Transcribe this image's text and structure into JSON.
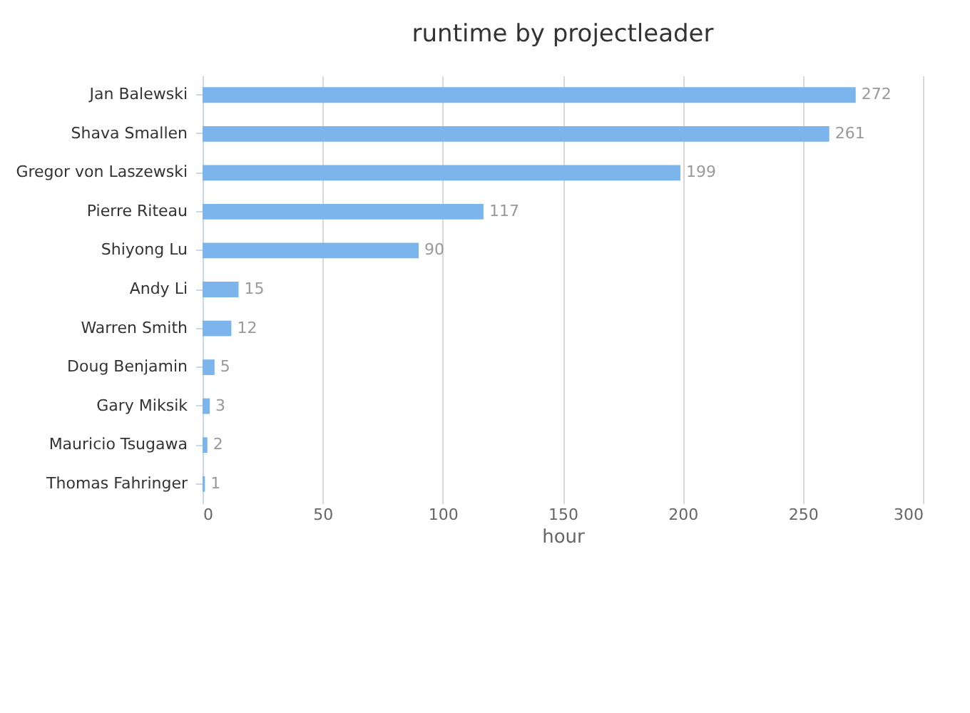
{
  "chart_data": {
    "type": "bar",
    "orientation": "horizontal",
    "title": "runtime by projectleader",
    "xlabel": "hour",
    "categories": [
      "Jan Balewski",
      "Shava Smallen",
      "Gregor von Laszewski",
      "Pierre Riteau",
      "Shiyong Lu",
      "Andy Li",
      "Warren Smith",
      "Doug Benjamin",
      "Gary Miksik",
      "Mauricio Tsugawa",
      "Thomas Fahringer"
    ],
    "values": [
      272,
      261,
      199,
      117,
      90,
      15,
      12,
      5,
      3,
      2,
      1
    ],
    "color": "#7cb5ec",
    "xlim": [
      0,
      300
    ],
    "xticks": [
      0,
      50,
      100,
      150,
      200,
      250,
      300
    ],
    "grid": "x",
    "data_labels": true
  }
}
